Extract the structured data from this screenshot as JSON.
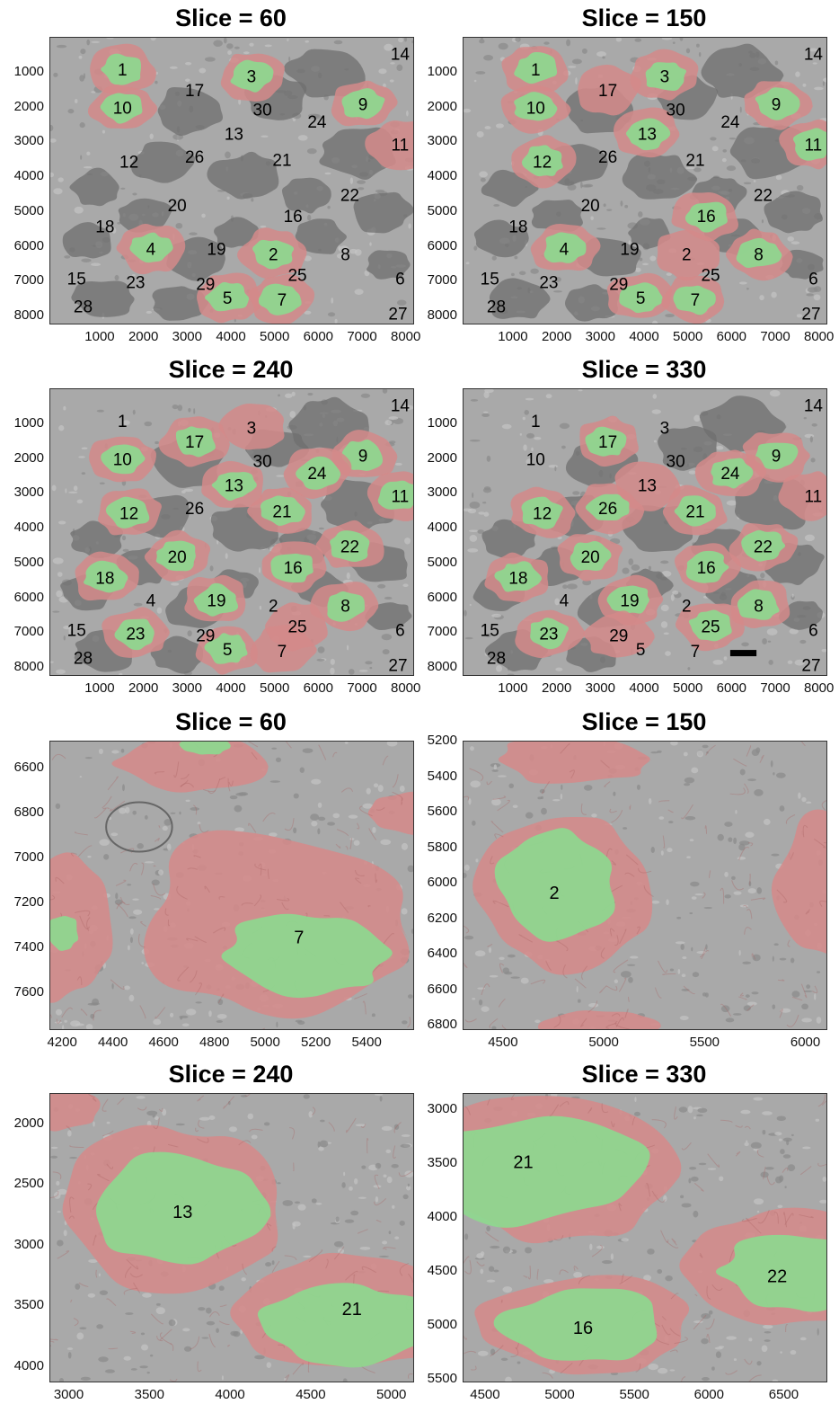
{
  "panels": [
    {
      "title": "Slice = 60",
      "yticks": [
        "1000",
        "2000",
        "3000",
        "4000",
        "5000",
        "6000",
        "7000",
        "8000"
      ],
      "xticks": [
        "1000",
        "2000",
        "3000",
        "4000",
        "5000",
        "6000",
        "7000",
        "8000"
      ],
      "labels": [
        "1",
        "3",
        "14",
        "10",
        "17",
        "30",
        "9",
        "24",
        "13",
        "11",
        "12",
        "26",
        "21",
        "22",
        "20",
        "16",
        "18",
        "4",
        "19",
        "2",
        "8",
        "15",
        "23",
        "29",
        "25",
        "6",
        "5",
        "7",
        "28",
        "27"
      ]
    },
    {
      "title": "Slice = 150",
      "yticks": [
        "1000",
        "2000",
        "3000",
        "4000",
        "5000",
        "6000",
        "7000",
        "8000"
      ],
      "xticks": [
        "1000",
        "2000",
        "3000",
        "4000",
        "5000",
        "6000",
        "7000",
        "8000"
      ],
      "labels": [
        "1",
        "3",
        "14",
        "10",
        "17",
        "30",
        "9",
        "24",
        "13",
        "11",
        "12",
        "26",
        "21",
        "22",
        "20",
        "16",
        "18",
        "4",
        "19",
        "2",
        "8",
        "15",
        "23",
        "29",
        "25",
        "6",
        "5",
        "7",
        "28",
        "27"
      ]
    },
    {
      "title": "Slice = 240",
      "yticks": [
        "1000",
        "2000",
        "3000",
        "4000",
        "5000",
        "6000",
        "7000",
        "8000"
      ],
      "xticks": [
        "1000",
        "2000",
        "3000",
        "4000",
        "5000",
        "6000",
        "7000",
        "8000"
      ],
      "labels": [
        "1",
        "3",
        "14",
        "10",
        "17",
        "30",
        "9",
        "24",
        "13",
        "11",
        "12",
        "26",
        "21",
        "22",
        "20",
        "16",
        "18",
        "4",
        "19",
        "2",
        "8",
        "15",
        "23",
        "29",
        "25",
        "6",
        "5",
        "7",
        "28",
        "27"
      ]
    },
    {
      "title": "Slice = 330",
      "yticks": [
        "1000",
        "2000",
        "3000",
        "4000",
        "5000",
        "6000",
        "7000",
        "8000"
      ],
      "xticks": [
        "1000",
        "2000",
        "3000",
        "4000",
        "5000",
        "6000",
        "7000",
        "8000"
      ],
      "labels": [
        "1",
        "3",
        "14",
        "10",
        "17",
        "30",
        "9",
        "24",
        "13",
        "11",
        "12",
        "26",
        "21",
        "22",
        "20",
        "16",
        "18",
        "4",
        "19",
        "2",
        "8",
        "15",
        "23",
        "29",
        "25",
        "6",
        "5",
        "7",
        "28",
        "27"
      ]
    },
    {
      "title": "Slice = 60",
      "yticks": [
        "6600",
        "6800",
        "7000",
        "7200",
        "7400",
        "7600"
      ],
      "xticks": [
        "4200",
        "4400",
        "4600",
        "4800",
        "5000",
        "5200",
        "5400"
      ],
      "labels": [
        "7"
      ]
    },
    {
      "title": "Slice = 150",
      "yticks": [
        "5200",
        "5400",
        "5600",
        "5800",
        "6000",
        "6200",
        "6400",
        "6600",
        "6800"
      ],
      "xticks": [
        "4500",
        "5000",
        "5500",
        "6000"
      ],
      "labels": [
        "2"
      ]
    },
    {
      "title": "Slice = 240",
      "yticks": [
        "2000",
        "2500",
        "3000",
        "3500",
        "4000"
      ],
      "xticks": [
        "3000",
        "3500",
        "4000",
        "4500",
        "5000"
      ],
      "labels": [
        "13",
        "21"
      ]
    },
    {
      "title": "Slice = 330",
      "yticks": [
        "3000",
        "3500",
        "4000",
        "4500",
        "5000",
        "5500"
      ],
      "xticks": [
        "4500",
        "5000",
        "5500",
        "6000",
        "6500"
      ],
      "labels": [
        "21",
        "22",
        "16"
      ]
    }
  ],
  "colors": {
    "background_tissue": "#a9a9a9",
    "dark_cell": "#6f6f6f",
    "red_overlay": "#d48a8a",
    "green_overlay": "#8fd68f",
    "scale_bar": "#000000"
  }
}
